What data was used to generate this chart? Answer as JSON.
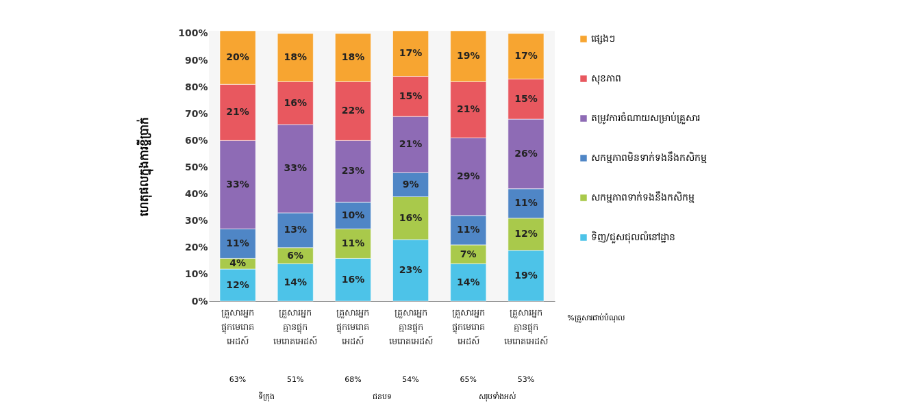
{
  "chart_data": {
    "type": "bar",
    "stacked": true,
    "ylabel": "ហេតុផលក្នុងការខ្ចីប្រាក់",
    "categories": [
      "គ្រួសារអ្នក ផ្ទុកមេរោគ អេដស៍",
      "គ្រួសារអ្នក គ្មានផ្ទុក មេរោគអេដស៍",
      "គ្រួសារអ្នក ផ្ទុកមេរោគ អេដស៍",
      "គ្រួសារអ្នក គ្មានផ្ទុក មេរោគអេដស៍",
      "គ្រួសារអ្នក ផ្ទុកមេរោគ អេដស៍",
      "គ្រួសារអ្នក គ្មានផ្ទុក មេរោគអេដស៍"
    ],
    "series": [
      {
        "name": "ទិញ/ជួសជុលលំនៅដ្ឋាន",
        "color": "#4dc3e8",
        "values": [
          12,
          14,
          16,
          23,
          14,
          19
        ],
        "value_labels": [
          "12%",
          "14%",
          "16%",
          "23%",
          "14%",
          "19%"
        ]
      },
      {
        "name": "សកម្មភាពទាក់ទងនឹងកសិកម្ម",
        "color": "#a9c94b",
        "values": [
          4,
          6,
          11,
          16,
          7,
          12
        ],
        "value_labels": [
          "4%",
          "6%",
          "11%",
          "16%",
          "7%",
          "12%"
        ]
      },
      {
        "name": "សកម្មភាពមិនទាក់ទងនឹងកសិកម្ម",
        "color": "#4f86c6",
        "values": [
          11,
          13,
          10,
          9,
          11,
          11
        ],
        "value_labels": [
          "11%",
          "13%",
          "10%",
          "9%",
          "11%",
          "11%"
        ]
      },
      {
        "name": "តម្រូវការចំណាយសម្រាប់គ្រួសារ",
        "color": "#8e6bb5",
        "values": [
          33,
          33,
          23,
          21,
          29,
          26
        ],
        "value_labels": [
          "33%",
          "33%",
          "23%",
          "21%",
          "29%",
          "26%"
        ]
      },
      {
        "name": "សុខភាព",
        "color": "#e8585f",
        "values": [
          21,
          16,
          22,
          15,
          21,
          15
        ],
        "value_labels": [
          "21%",
          "16%",
          "22%",
          "15%",
          "21%",
          "15%"
        ]
      },
      {
        "name": "ផ្សេងៗ",
        "color": "#f7a531",
        "values": [
          20,
          18,
          18,
          17,
          19,
          17
        ],
        "value_labels": [
          "20%",
          "18%",
          "18%",
          "17%",
          "19%",
          "17%"
        ]
      }
    ],
    "ylim": [
      0,
      101
    ],
    "yticks": [
      {
        "value": 0,
        "label": "0%"
      },
      {
        "value": 10,
        "label": "10%"
      },
      {
        "value": 20,
        "label": "20%"
      },
      {
        "value": 30,
        "label": "30%"
      },
      {
        "value": 40,
        "label": "40%"
      },
      {
        "value": 50,
        "label": "50%"
      },
      {
        "value": 60,
        "label": "60%"
      },
      {
        "value": 70,
        "label": "70%"
      },
      {
        "value": 80,
        "label": "80%"
      },
      {
        "value": 90,
        "label": "90%"
      },
      {
        "value": 100,
        "label": "100%"
      }
    ],
    "grid": false,
    "legend": "right",
    "annotations": [
      "63%",
      "51%",
      "68%",
      "54%",
      "65%",
      "53%",
      "%គ្រួសារជាប់បំណុល",
      "ទីក្រុង",
      "ជនបទ",
      "សរុបទាំងអស់"
    ]
  }
}
